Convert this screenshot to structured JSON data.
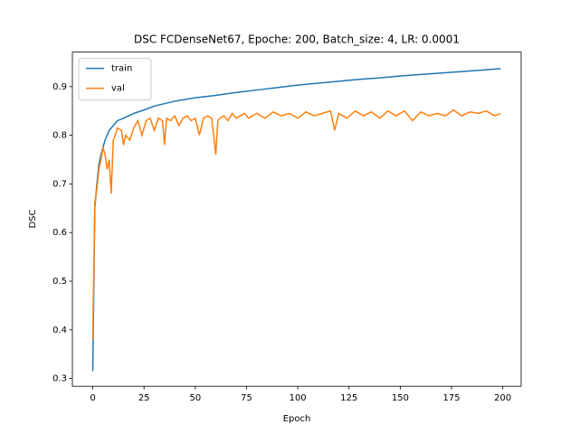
{
  "chart_data": {
    "type": "line",
    "title": "DSC FCDenseNet67, Epoche: 200, Batch_size: 4, LR: 0.0001",
    "x_label": "Epoch",
    "y_label": "DSC",
    "xlim": [
      -9.95,
      208.95
    ],
    "xticks": [
      0,
      25,
      50,
      75,
      100,
      125,
      150,
      175,
      200
    ],
    "ylim": [
      0.284,
      0.971
    ],
    "yticks": [
      0.3,
      0.4,
      0.5,
      0.6,
      0.7,
      0.8,
      0.9
    ],
    "legend": "upper left",
    "grid": false,
    "series": [
      {
        "name": "train",
        "color": "#1f77b4",
        "x": [
          0,
          1,
          2,
          3,
          4,
          5,
          6,
          7,
          8,
          10,
          12,
          15,
          20,
          25,
          30,
          40,
          50,
          60,
          70,
          80,
          90,
          100,
          110,
          120,
          130,
          140,
          150,
          160,
          170,
          180,
          190,
          199
        ],
        "values": [
          0.315,
          0.65,
          0.7,
          0.74,
          0.76,
          0.775,
          0.79,
          0.8,
          0.81,
          0.82,
          0.83,
          0.835,
          0.845,
          0.852,
          0.86,
          0.87,
          0.877,
          0.882,
          0.888,
          0.893,
          0.898,
          0.903,
          0.907,
          0.911,
          0.915,
          0.918,
          0.922,
          0.925,
          0.928,
          0.931,
          0.934,
          0.937
        ]
      },
      {
        "name": "val",
        "color": "#ff7f0e",
        "x": [
          0,
          1,
          2,
          3,
          4,
          5,
          6,
          7,
          8,
          9,
          10,
          11,
          12,
          14,
          15,
          16,
          18,
          20,
          22,
          24,
          26,
          28,
          30,
          32,
          34,
          35,
          36,
          38,
          40,
          42,
          44,
          46,
          48,
          50,
          52,
          54,
          56,
          58,
          59,
          60,
          61,
          62,
          64,
          66,
          68,
          70,
          72,
          74,
          76,
          80,
          84,
          88,
          92,
          96,
          100,
          104,
          108,
          112,
          116,
          118,
          120,
          124,
          128,
          132,
          136,
          140,
          144,
          148,
          152,
          156,
          160,
          164,
          168,
          172,
          176,
          180,
          184,
          188,
          192,
          196,
          199
        ],
        "values": [
          0.38,
          0.66,
          0.69,
          0.73,
          0.75,
          0.775,
          0.76,
          0.73,
          0.75,
          0.68,
          0.79,
          0.8,
          0.815,
          0.81,
          0.78,
          0.8,
          0.79,
          0.815,
          0.83,
          0.8,
          0.83,
          0.835,
          0.81,
          0.835,
          0.83,
          0.78,
          0.835,
          0.83,
          0.84,
          0.82,
          0.835,
          0.84,
          0.83,
          0.835,
          0.8,
          0.835,
          0.84,
          0.835,
          0.8,
          0.76,
          0.83,
          0.835,
          0.84,
          0.83,
          0.845,
          0.835,
          0.84,
          0.845,
          0.835,
          0.845,
          0.835,
          0.848,
          0.84,
          0.845,
          0.835,
          0.848,
          0.84,
          0.845,
          0.85,
          0.81,
          0.845,
          0.835,
          0.85,
          0.84,
          0.848,
          0.835,
          0.85,
          0.84,
          0.85,
          0.83,
          0.848,
          0.84,
          0.845,
          0.84,
          0.852,
          0.84,
          0.848,
          0.845,
          0.85,
          0.84,
          0.845
        ]
      }
    ]
  }
}
